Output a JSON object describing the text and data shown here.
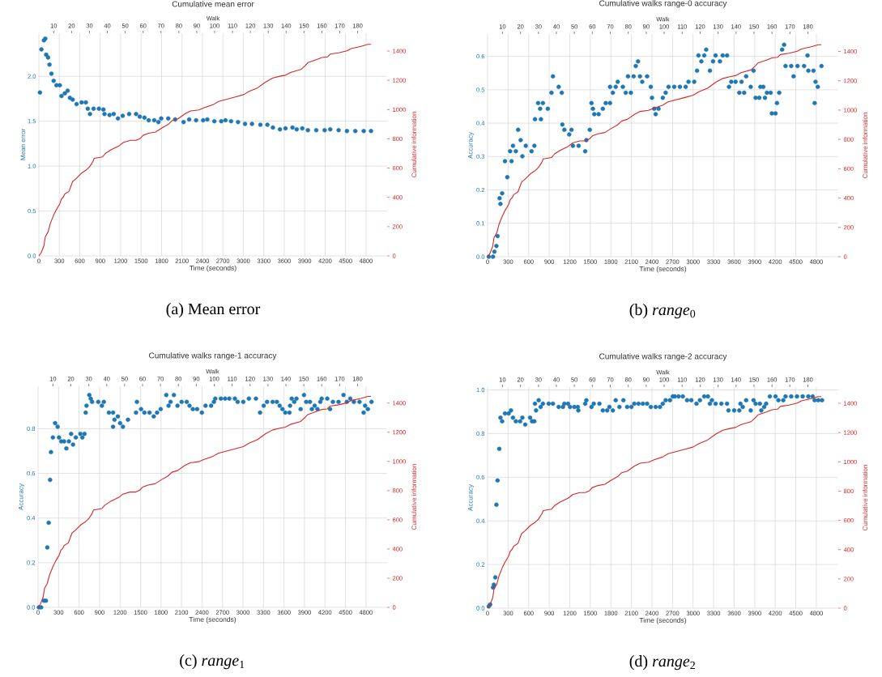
{
  "chart_data": [
    {
      "type": "scatter",
      "title": "Cumulative mean error",
      "xlabel": "Time (seconds)",
      "ylabel": "Mean error",
      "y2label": "Cumulative information",
      "x2label": "Walk",
      "annotations": [
        "(a) Mean error"
      ],
      "grid": true,
      "xlim": [
        0,
        5110
      ],
      "x2lim": [
        1.7,
        196.5
      ],
      "ylim": [
        0,
        2.48
      ],
      "y2lim": [
        0,
        1522
      ],
      "xticks": [
        0,
        300,
        600,
        900,
        1200,
        1500,
        1800,
        2100,
        2400,
        2700,
        3000,
        3300,
        3600,
        3900,
        4200,
        4500,
        4800
      ],
      "yticks": [
        {
          "value": 0,
          "label": "0.0"
        },
        0.5,
        {
          "value": 1,
          "label": "1.0"
        },
        1.5,
        {
          "value": 2,
          "label": "2.0"
        }
      ],
      "y2ticks": [
        0,
        200,
        400,
        600,
        800,
        1000,
        1200,
        1400
      ],
      "x2ticks": [
        10,
        20,
        30,
        40,
        50,
        60,
        70,
        80,
        90,
        100,
        110,
        120,
        130,
        140,
        150,
        160,
        170,
        180
      ],
      "series": [
        {
          "marker": "circle",
          "color": "#1f77b4",
          "x": [
            16,
            37,
            74,
            94,
            107,
            135,
            156,
            184,
            217,
            258,
            307,
            332,
            381,
            422,
            455,
            496,
            553,
            627,
            689,
            717,
            750,
            803,
            881,
            947,
            963,
            1037,
            1098,
            1160,
            1230,
            1324,
            1426,
            1480,
            1549,
            1611,
            1693,
            1754,
            1795,
            1898,
            2000,
            2123,
            2205,
            2307,
            2410,
            2471,
            2574,
            2676,
            2738,
            2820,
            2922,
            3025,
            3127,
            3250,
            3352,
            3434,
            3537,
            3619,
            3721,
            3783,
            3865,
            3947,
            4070,
            4193,
            4275,
            4398,
            4520,
            4643,
            4766,
            4873
          ],
          "values": [
            1.82,
            2.3,
            2.4,
            2.42,
            2.24,
            2.21,
            2.13,
            2.03,
            1.95,
            1.9,
            1.9,
            1.78,
            1.81,
            1.84,
            1.76,
            1.74,
            1.69,
            1.71,
            1.71,
            1.64,
            1.58,
            1.64,
            1.64,
            1.63,
            1.58,
            1.57,
            1.58,
            1.53,
            1.56,
            1.58,
            1.58,
            1.55,
            1.54,
            1.51,
            1.51,
            1.49,
            1.53,
            1.53,
            1.52,
            1.49,
            1.52,
            1.51,
            1.51,
            1.52,
            1.5,
            1.5,
            1.51,
            1.5,
            1.49,
            1.47,
            1.47,
            1.46,
            1.46,
            1.43,
            1.41,
            1.42,
            1.43,
            1.41,
            1.42,
            1.4,
            1.4,
            1.4,
            1.41,
            1.4,
            1.39,
            1.39,
            1.39,
            1.39
          ]
        },
        {
          "type": "line",
          "axis": "y2",
          "color": "#d62728",
          "x": [
            0,
            33,
            74,
            94,
            135,
            168,
            217,
            258,
            307,
            332,
            361,
            381,
            443,
            496,
            545,
            627,
            689,
            742,
            791,
            812,
            935,
            976,
            1057,
            1180,
            1242,
            1344,
            1426,
            1488,
            1529,
            1611,
            1713,
            1795,
            1898,
            1959,
            2041,
            2144,
            2226,
            2349,
            2431,
            2554,
            2636,
            2759,
            2882,
            3004,
            3087,
            3210,
            3332,
            3435,
            3537,
            3619,
            3701,
            3844,
            3906,
            3947,
            4070,
            4152,
            4234,
            4275,
            4398,
            4521,
            4582,
            4726,
            4828,
            4873
          ],
          "values": [
            0,
            21,
            69,
            130,
            164,
            222,
            279,
            317,
            356,
            390,
            404,
            423,
            442,
            509,
            528,
            566,
            585,
            608,
            643,
            667,
            677,
            700,
            725,
            753,
            776,
            790,
            790,
            803,
            824,
            838,
            847,
            872,
            899,
            926,
            937,
            971,
            991,
            998,
            1014,
            1033,
            1056,
            1071,
            1086,
            1102,
            1125,
            1149,
            1190,
            1216,
            1228,
            1235,
            1255,
            1274,
            1300,
            1321,
            1341,
            1356,
            1360,
            1379,
            1388,
            1402,
            1417,
            1432,
            1446,
            1446
          ]
        }
      ]
    },
    {
      "type": "scatter",
      "title": "Cumulative walks range-0 accuracy",
      "xlabel": "Time (seconds)",
      "ylabel": "Accuracy",
      "y2label": "Cumulative information",
      "x2label": "Walk",
      "annotations": [
        "(b) *range*$_{0}$"
      ],
      "grid": true,
      "xlim": [
        0,
        5120
      ],
      "x2lim": [
        1.7,
        196.9
      ],
      "ylim": [
        0,
        0.667
      ],
      "y2lim": [
        0,
        1519
      ],
      "xticks": [
        0,
        300,
        600,
        900,
        1200,
        1500,
        1800,
        2100,
        2400,
        2700,
        3000,
        3300,
        3600,
        3900,
        4200,
        4500,
        4800
      ],
      "yticks": [
        {
          "value": 0,
          "label": "0.0"
        },
        0.1,
        0.2,
        0.3,
        0.4,
        0.5,
        0.6
      ],
      "y2ticks": [
        0,
        200,
        400,
        600,
        800,
        1000,
        1200,
        1400
      ],
      "x2ticks": [
        10,
        20,
        30,
        40,
        50,
        60,
        70,
        80,
        90,
        100,
        110,
        120,
        130,
        140,
        150,
        160,
        170,
        180
      ],
      "series": [
        {
          "marker": "circle",
          "color": "#1f77b4",
          "x": [
            17,
            79,
            100,
            129,
            146,
            175,
            188,
            213,
            254,
            288,
            329,
            350,
            371,
            413,
            446,
            483,
            508,
            558,
            642,
            683,
            692,
            738,
            767,
            779,
            808,
            879,
            933,
            954,
            1038,
            1083,
            1092,
            1121,
            1192,
            1225,
            1246,
            1329,
            1425,
            1442,
            1492,
            1517,
            1538,
            1558,
            1621,
            1683,
            1725,
            1788,
            1788,
            1829,
            1871,
            1900,
            1975,
            2017,
            2050,
            2092,
            2133,
            2163,
            2196,
            2225,
            2258,
            2329,
            2383,
            2400,
            2433,
            2454,
            2496,
            2558,
            2600,
            2642,
            2725,
            2808,
            2892,
            2933,
            3017,
            3058,
            3079,
            3121,
            3163,
            3192,
            3246,
            3292,
            3329,
            3392,
            3433,
            3496,
            3525,
            3558,
            3621,
            3675,
            3708,
            3746,
            3775,
            3842,
            3883,
            3913,
            3967,
            3983,
            4025,
            4050,
            4079,
            4133,
            4150,
            4204,
            4225,
            4258,
            4300,
            4329,
            4350,
            4433,
            4467,
            4525,
            4621,
            4671,
            4683,
            4758,
            4775,
            4788,
            4821,
            4875
          ],
          "values": [
            0.0,
            0.0,
            0.015,
            0.032,
            0.062,
            0.175,
            0.158,
            0.19,
            0.286,
            0.238,
            0.316,
            0.286,
            0.332,
            0.316,
            0.38,
            0.349,
            0.301,
            0.332,
            0.316,
            0.332,
            0.412,
            0.46,
            0.443,
            0.412,
            0.46,
            0.443,
            0.491,
            0.54,
            0.509,
            0.491,
            0.396,
            0.38,
            0.366,
            0.38,
            0.332,
            0.332,
            0.316,
            0.349,
            0.38,
            0.46,
            0.443,
            0.427,
            0.427,
            0.443,
            0.46,
            0.46,
            0.509,
            0.491,
            0.509,
            0.524,
            0.509,
            0.491,
            0.54,
            0.491,
            0.54,
            0.571,
            0.585,
            0.54,
            0.524,
            0.54,
            0.509,
            0.476,
            0.443,
            0.427,
            0.443,
            0.476,
            0.491,
            0.509,
            0.509,
            0.509,
            0.509,
            0.524,
            0.524,
            0.557,
            0.603,
            0.585,
            0.603,
            0.62,
            0.557,
            0.585,
            0.603,
            0.585,
            0.603,
            0.603,
            0.509,
            0.524,
            0.524,
            0.491,
            0.524,
            0.491,
            0.54,
            0.509,
            0.557,
            0.476,
            0.476,
            0.509,
            0.509,
            0.476,
            0.491,
            0.491,
            0.429,
            0.429,
            0.46,
            0.491,
            0.62,
            0.635,
            0.571,
            0.571,
            0.54,
            0.571,
            0.571,
            0.603,
            0.557,
            0.557,
            0.46,
            0.524,
            0.509,
            0.571
          ]
        },
        {
          "type": "line",
          "axis": "y2",
          "color": "#d62728",
          "x": [
            0,
            33,
            74,
            94,
            135,
            168,
            217,
            258,
            307,
            332,
            361,
            381,
            443,
            496,
            545,
            627,
            689,
            742,
            791,
            812,
            935,
            976,
            1057,
            1180,
            1242,
            1344,
            1426,
            1488,
            1529,
            1611,
            1713,
            1795,
            1898,
            1959,
            2041,
            2144,
            2226,
            2349,
            2431,
            2554,
            2636,
            2759,
            2882,
            3004,
            3087,
            3210,
            3332,
            3435,
            3537,
            3619,
            3701,
            3844,
            3906,
            3947,
            4070,
            4152,
            4234,
            4275,
            4398,
            4521,
            4582,
            4726,
            4828,
            4873
          ],
          "values": [
            0,
            21,
            69,
            130,
            164,
            222,
            279,
            317,
            356,
            390,
            404,
            423,
            442,
            509,
            528,
            566,
            585,
            608,
            643,
            667,
            677,
            700,
            725,
            753,
            776,
            790,
            790,
            803,
            824,
            838,
            847,
            872,
            899,
            926,
            937,
            971,
            991,
            998,
            1014,
            1033,
            1056,
            1071,
            1086,
            1102,
            1125,
            1149,
            1190,
            1216,
            1228,
            1235,
            1255,
            1274,
            1300,
            1321,
            1341,
            1356,
            1360,
            1379,
            1388,
            1402,
            1417,
            1432,
            1446,
            1446
          ]
        }
      ]
    },
    {
      "type": "scatter",
      "title": "Cumulative walks range-1 accuracy",
      "xlabel": "Time (seconds)",
      "ylabel": "Accuracy",
      "y2label": "Cumulative information",
      "x2label": "Walk",
      "annotations": [
        "(c) *range*$_{1}$"
      ],
      "grid": true,
      "xlim": [
        0,
        5110
      ],
      "x2lim": [
        1.7,
        196.5
      ],
      "ylim": [
        0,
        0.99
      ],
      "y2lim": [
        0,
        1515
      ],
      "xticks": [
        0,
        300,
        600,
        900,
        1200,
        1500,
        1800,
        2100,
        2400,
        2700,
        3000,
        3300,
        3600,
        3900,
        4200,
        4500,
        4800
      ],
      "yticks": [
        {
          "value": 0,
          "label": "0.0"
        },
        0.2,
        0.4,
        0.6,
        0.8
      ],
      "y2ticks": [
        0,
        200,
        400,
        600,
        800,
        1000,
        1200,
        1400
      ],
      "x2ticks": [
        10,
        20,
        30,
        40,
        50,
        60,
        70,
        80,
        90,
        100,
        110,
        120,
        130,
        140,
        150,
        160,
        170,
        180
      ],
      "series": [
        {
          "marker": "circle",
          "color": "#1f77b4",
          "x": [
            12,
            45,
            86,
            115,
            135,
            156,
            176,
            189,
            217,
            250,
            287,
            307,
            340,
            381,
            414,
            451,
            484,
            512,
            553,
            619,
            648,
            680,
            697,
            709,
            750,
            771,
            791,
            881,
            934,
            963,
            1037,
            1098,
            1098,
            1119,
            1168,
            1201,
            1242,
            1316,
            1434,
            1447,
            1508,
            1557,
            1631,
            1693,
            1742,
            1795,
            1877,
            1910,
            1939,
            1988,
            2041,
            2102,
            2176,
            2217,
            2266,
            2328,
            2398,
            2451,
            2533,
            2574,
            2594,
            2676,
            2738,
            2799,
            2881,
            2922,
            3004,
            3086,
            3189,
            3250,
            3303,
            3352,
            3434,
            3496,
            3537,
            3578,
            3619,
            3680,
            3689,
            3713,
            3750,
            3783,
            3844,
            3893,
            3926,
            3980,
            4008,
            4049,
            4090,
            4131,
            4152,
            4234,
            4275,
            4316,
            4398,
            4471,
            4520,
            4570,
            4623,
            4705,
            4766,
            4787,
            4828,
            4881
          ],
          "values": [
            0.0,
            0.0,
            0.03,
            0.03,
            0.268,
            0.379,
            0.571,
            0.695,
            0.761,
            0.825,
            0.809,
            0.761,
            0.743,
            0.743,
            0.712,
            0.743,
            0.777,
            0.729,
            0.761,
            0.777,
            0.761,
            0.777,
            0.872,
            0.903,
            0.951,
            0.935,
            0.92,
            0.92,
            0.903,
            0.92,
            0.872,
            0.872,
            0.809,
            0.84,
            0.855,
            0.825,
            0.809,
            0.84,
            0.872,
            0.92,
            0.888,
            0.872,
            0.872,
            0.855,
            0.872,
            0.888,
            0.951,
            0.903,
            0.92,
            0.951,
            0.903,
            0.92,
            0.92,
            0.903,
            0.888,
            0.888,
            0.872,
            0.903,
            0.903,
            0.92,
            0.935,
            0.935,
            0.935,
            0.935,
            0.935,
            0.92,
            0.92,
            0.935,
            0.935,
            0.872,
            0.903,
            0.92,
            0.92,
            0.92,
            0.903,
            0.888,
            0.872,
            0.872,
            0.903,
            0.935,
            0.92,
            0.935,
            0.888,
            0.951,
            0.92,
            0.92,
            0.888,
            0.903,
            0.888,
            0.92,
            0.935,
            0.935,
            0.888,
            0.92,
            0.92,
            0.951,
            0.92,
            0.935,
            0.92,
            0.92,
            0.872,
            0.903,
            0.888,
            0.92
          ]
        },
        {
          "type": "line",
          "axis": "y2",
          "color": "#d62728",
          "x": [
            0,
            33,
            74,
            94,
            135,
            168,
            217,
            258,
            307,
            332,
            361,
            381,
            443,
            496,
            545,
            627,
            689,
            742,
            791,
            812,
            935,
            976,
            1057,
            1180,
            1242,
            1344,
            1426,
            1488,
            1529,
            1611,
            1713,
            1795,
            1898,
            1959,
            2041,
            2144,
            2226,
            2349,
            2431,
            2554,
            2636,
            2759,
            2882,
            3004,
            3087,
            3210,
            3332,
            3435,
            3537,
            3619,
            3701,
            3844,
            3906,
            3947,
            4070,
            4152,
            4234,
            4275,
            4398,
            4521,
            4582,
            4726,
            4828,
            4873
          ],
          "values": [
            0,
            21,
            69,
            130,
            164,
            222,
            279,
            317,
            356,
            390,
            404,
            423,
            442,
            509,
            528,
            566,
            585,
            608,
            643,
            667,
            677,
            700,
            725,
            753,
            776,
            790,
            790,
            803,
            824,
            838,
            847,
            872,
            899,
            926,
            937,
            971,
            991,
            998,
            1014,
            1033,
            1056,
            1071,
            1086,
            1102,
            1125,
            1149,
            1190,
            1216,
            1228,
            1235,
            1255,
            1274,
            1300,
            1321,
            1341,
            1356,
            1360,
            1379,
            1388,
            1402,
            1417,
            1432,
            1446,
            1446
          ]
        }
      ]
    },
    {
      "type": "scatter",
      "title": "Cumulative walks range-2 accuracy",
      "xlabel": "Time (seconds)",
      "ylabel": "Accuracy",
      "y2label": "Cumulative information",
      "x2label": "Walk",
      "annotations": [
        "(d) *range*$_{2}$"
      ],
      "grid": true,
      "xlim": [
        0,
        5120
      ],
      "x2lim": [
        1.7,
        196.9
      ],
      "ylim": [
        0,
        1.013
      ],
      "y2lim": [
        0,
        1511
      ],
      "xticks": [
        0,
        300,
        600,
        900,
        1200,
        1500,
        1800,
        2100,
        2400,
        2700,
        3000,
        3300,
        3600,
        3900,
        4200,
        4500,
        4800
      ],
      "yticks": [
        {
          "value": 0,
          "label": "0.0"
        },
        0.2,
        0.4,
        0.6,
        0.8,
        {
          "value": 1,
          "label": "1.0"
        }
      ],
      "y2ticks": [
        0,
        200,
        400,
        600,
        800,
        1000,
        1200,
        1400
      ],
      "x2ticks": [
        10,
        20,
        30,
        40,
        50,
        60,
        70,
        80,
        90,
        100,
        110,
        120,
        130,
        140,
        150,
        160,
        170,
        180
      ],
      "series": [
        {
          "marker": "circle",
          "color": "#1f77b4",
          "x": [
            17,
            38,
            79,
            92,
            113,
            129,
            146,
            171,
            188,
            213,
            254,
            308,
            342,
            371,
            413,
            475,
            508,
            550,
            621,
            650,
            683,
            692,
            708,
            746,
            775,
            808,
            892,
            954,
            1038,
            1100,
            1121,
            1175,
            1204,
            1267,
            1317,
            1325,
            1425,
            1442,
            1517,
            1550,
            1633,
            1683,
            1746,
            1779,
            1829,
            1871,
            1925,
            1983,
            2038,
            2100,
            2142,
            2204,
            2267,
            2329,
            2383,
            2454,
            2517,
            2558,
            2600,
            2663,
            2704,
            2733,
            2788,
            2850,
            2913,
            2975,
            3050,
            3100,
            3163,
            3217,
            3246,
            3275,
            3329,
            3413,
            3496,
            3517,
            3600,
            3675,
            3692,
            3725,
            3775,
            3842,
            3883,
            3913,
            3975,
            3996,
            4038,
            4067,
            4121,
            4204,
            4246,
            4317,
            4350,
            4433,
            4517,
            4600,
            4683,
            4746,
            4775,
            4829,
            4883
          ],
          "values": [
            0.008,
            0.017,
            0.095,
            0.108,
            0.141,
            0.474,
            0.585,
            0.73,
            0.873,
            0.856,
            0.892,
            0.892,
            0.906,
            0.873,
            0.856,
            0.856,
            0.873,
            0.841,
            0.873,
            0.856,
            0.856,
            0.937,
            0.906,
            0.953,
            0.922,
            0.937,
            0.937,
            0.937,
            0.922,
            0.922,
            0.937,
            0.937,
            0.922,
            0.922,
            0.922,
            0.906,
            0.937,
            0.953,
            0.922,
            0.937,
            0.937,
            0.906,
            0.906,
            0.922,
            0.906,
            0.953,
            0.922,
            0.953,
            0.922,
            0.922,
            0.937,
            0.937,
            0.937,
            0.937,
            0.922,
            0.922,
            0.922,
            0.937,
            0.953,
            0.953,
            0.97,
            0.97,
            0.97,
            0.97,
            0.953,
            0.953,
            0.937,
            0.953,
            0.97,
            0.97,
            0.937,
            0.953,
            0.937,
            0.937,
            0.937,
            0.906,
            0.906,
            0.906,
            0.937,
            0.922,
            0.953,
            0.906,
            0.953,
            0.937,
            0.937,
            0.906,
            0.922,
            0.937,
            0.97,
            0.97,
            0.953,
            0.953,
            0.97,
            0.97,
            0.97,
            0.97,
            0.97,
            0.97,
            0.953,
            0.953,
            0.953
          ]
        },
        {
          "type": "line",
          "axis": "y2",
          "color": "#d62728",
          "x": [
            0,
            33,
            74,
            94,
            135,
            168,
            217,
            258,
            307,
            332,
            361,
            381,
            443,
            496,
            545,
            627,
            689,
            742,
            791,
            812,
            935,
            976,
            1057,
            1180,
            1242,
            1344,
            1426,
            1488,
            1529,
            1611,
            1713,
            1795,
            1898,
            1959,
            2041,
            2144,
            2226,
            2349,
            2431,
            2554,
            2636,
            2759,
            2882,
            3004,
            3087,
            3210,
            3332,
            3435,
            3537,
            3619,
            3701,
            3844,
            3906,
            3947,
            4070,
            4152,
            4234,
            4275,
            4398,
            4521,
            4582,
            4726,
            4828,
            4873
          ],
          "values": [
            0,
            21,
            69,
            130,
            164,
            222,
            279,
            317,
            356,
            390,
            404,
            423,
            442,
            509,
            528,
            566,
            585,
            608,
            643,
            667,
            677,
            700,
            725,
            753,
            776,
            790,
            790,
            803,
            824,
            838,
            847,
            872,
            899,
            926,
            937,
            971,
            991,
            998,
            1014,
            1033,
            1056,
            1071,
            1086,
            1102,
            1125,
            1149,
            1190,
            1216,
            1228,
            1235,
            1255,
            1274,
            1300,
            1321,
            1341,
            1356,
            1360,
            1379,
            1388,
            1402,
            1417,
            1432,
            1446,
            1446
          ]
        }
      ]
    }
  ]
}
